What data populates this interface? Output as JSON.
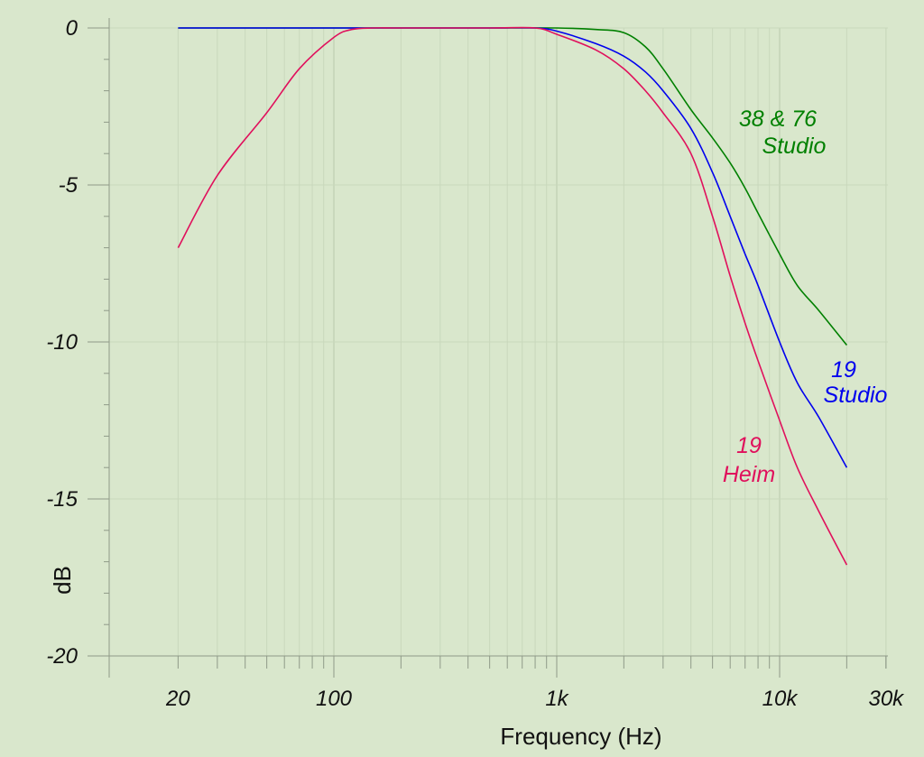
{
  "chart_data": {
    "type": "line",
    "xscale": "log",
    "xlim": [
      15,
      30000
    ],
    "ylim": [
      -20,
      0
    ],
    "xlabel": "Frequency (Hz)",
    "ylabel": "dB",
    "grid": true,
    "x_tick_labels": [
      {
        "value": 20,
        "label": "20"
      },
      {
        "value": 100,
        "label": "100"
      },
      {
        "value": 1000,
        "label": "1k"
      },
      {
        "value": 10000,
        "label": "10k"
      },
      {
        "value": 30000,
        "label": "30k"
      }
    ],
    "y_tick_labels": [
      {
        "value": 0,
        "label": "0"
      },
      {
        "value": -5,
        "label": "-5"
      },
      {
        "value": -10,
        "label": "-10"
      },
      {
        "value": -15,
        "label": "-15"
      },
      {
        "value": -20,
        "label": "-20"
      }
    ],
    "series": [
      {
        "name": "38 & 76 Studio",
        "label_lines": [
          "38 & 76",
          "Studio"
        ],
        "color": "#008000",
        "x": [
          20,
          50,
          100,
          200,
          500,
          1000,
          1500,
          2000,
          2500,
          3000,
          4000,
          5000,
          6000,
          7000,
          8000,
          10000,
          12000,
          15000,
          20000
        ],
        "y": [
          0,
          0,
          0,
          0,
          0,
          0,
          -0.05,
          -0.15,
          -0.6,
          -1.3,
          -2.6,
          -3.5,
          -4.3,
          -5.1,
          -5.9,
          -7.2,
          -8.2,
          -9.0,
          -10.1
        ]
      },
      {
        "name": "19 Studio",
        "label_lines": [
          "19",
          "Studio"
        ],
        "color": "#0000ee",
        "x": [
          20,
          50,
          100,
          200,
          500,
          800,
          1000,
          1500,
          2000,
          2500,
          3000,
          4000,
          5000,
          6000,
          7000,
          8000,
          10000,
          12000,
          15000,
          20000
        ],
        "y": [
          0,
          0,
          0,
          0,
          0,
          0,
          -0.1,
          -0.5,
          -0.9,
          -1.4,
          -2.0,
          -3.2,
          -4.6,
          -6.0,
          -7.2,
          -8.2,
          -10.0,
          -11.3,
          -12.4,
          -14.0
        ]
      },
      {
        "name": "19 Heim",
        "label_lines": [
          "19",
          "Heim"
        ],
        "color": "#e0105c",
        "x": [
          20,
          30,
          50,
          70,
          100,
          120,
          150,
          200,
          500,
          800,
          1000,
          1500,
          2000,
          2500,
          3000,
          4000,
          5000,
          6000,
          7000,
          8000,
          10000,
          12000,
          15000,
          20000
        ],
        "y": [
          -7.0,
          -4.7,
          -2.7,
          -1.3,
          -0.3,
          -0.05,
          0,
          0,
          0,
          0,
          -0.2,
          -0.7,
          -1.3,
          -2.0,
          -2.7,
          -4.0,
          -6.0,
          -7.9,
          -9.4,
          -10.6,
          -12.5,
          -14.0,
          -15.4,
          -17.1
        ]
      }
    ]
  }
}
